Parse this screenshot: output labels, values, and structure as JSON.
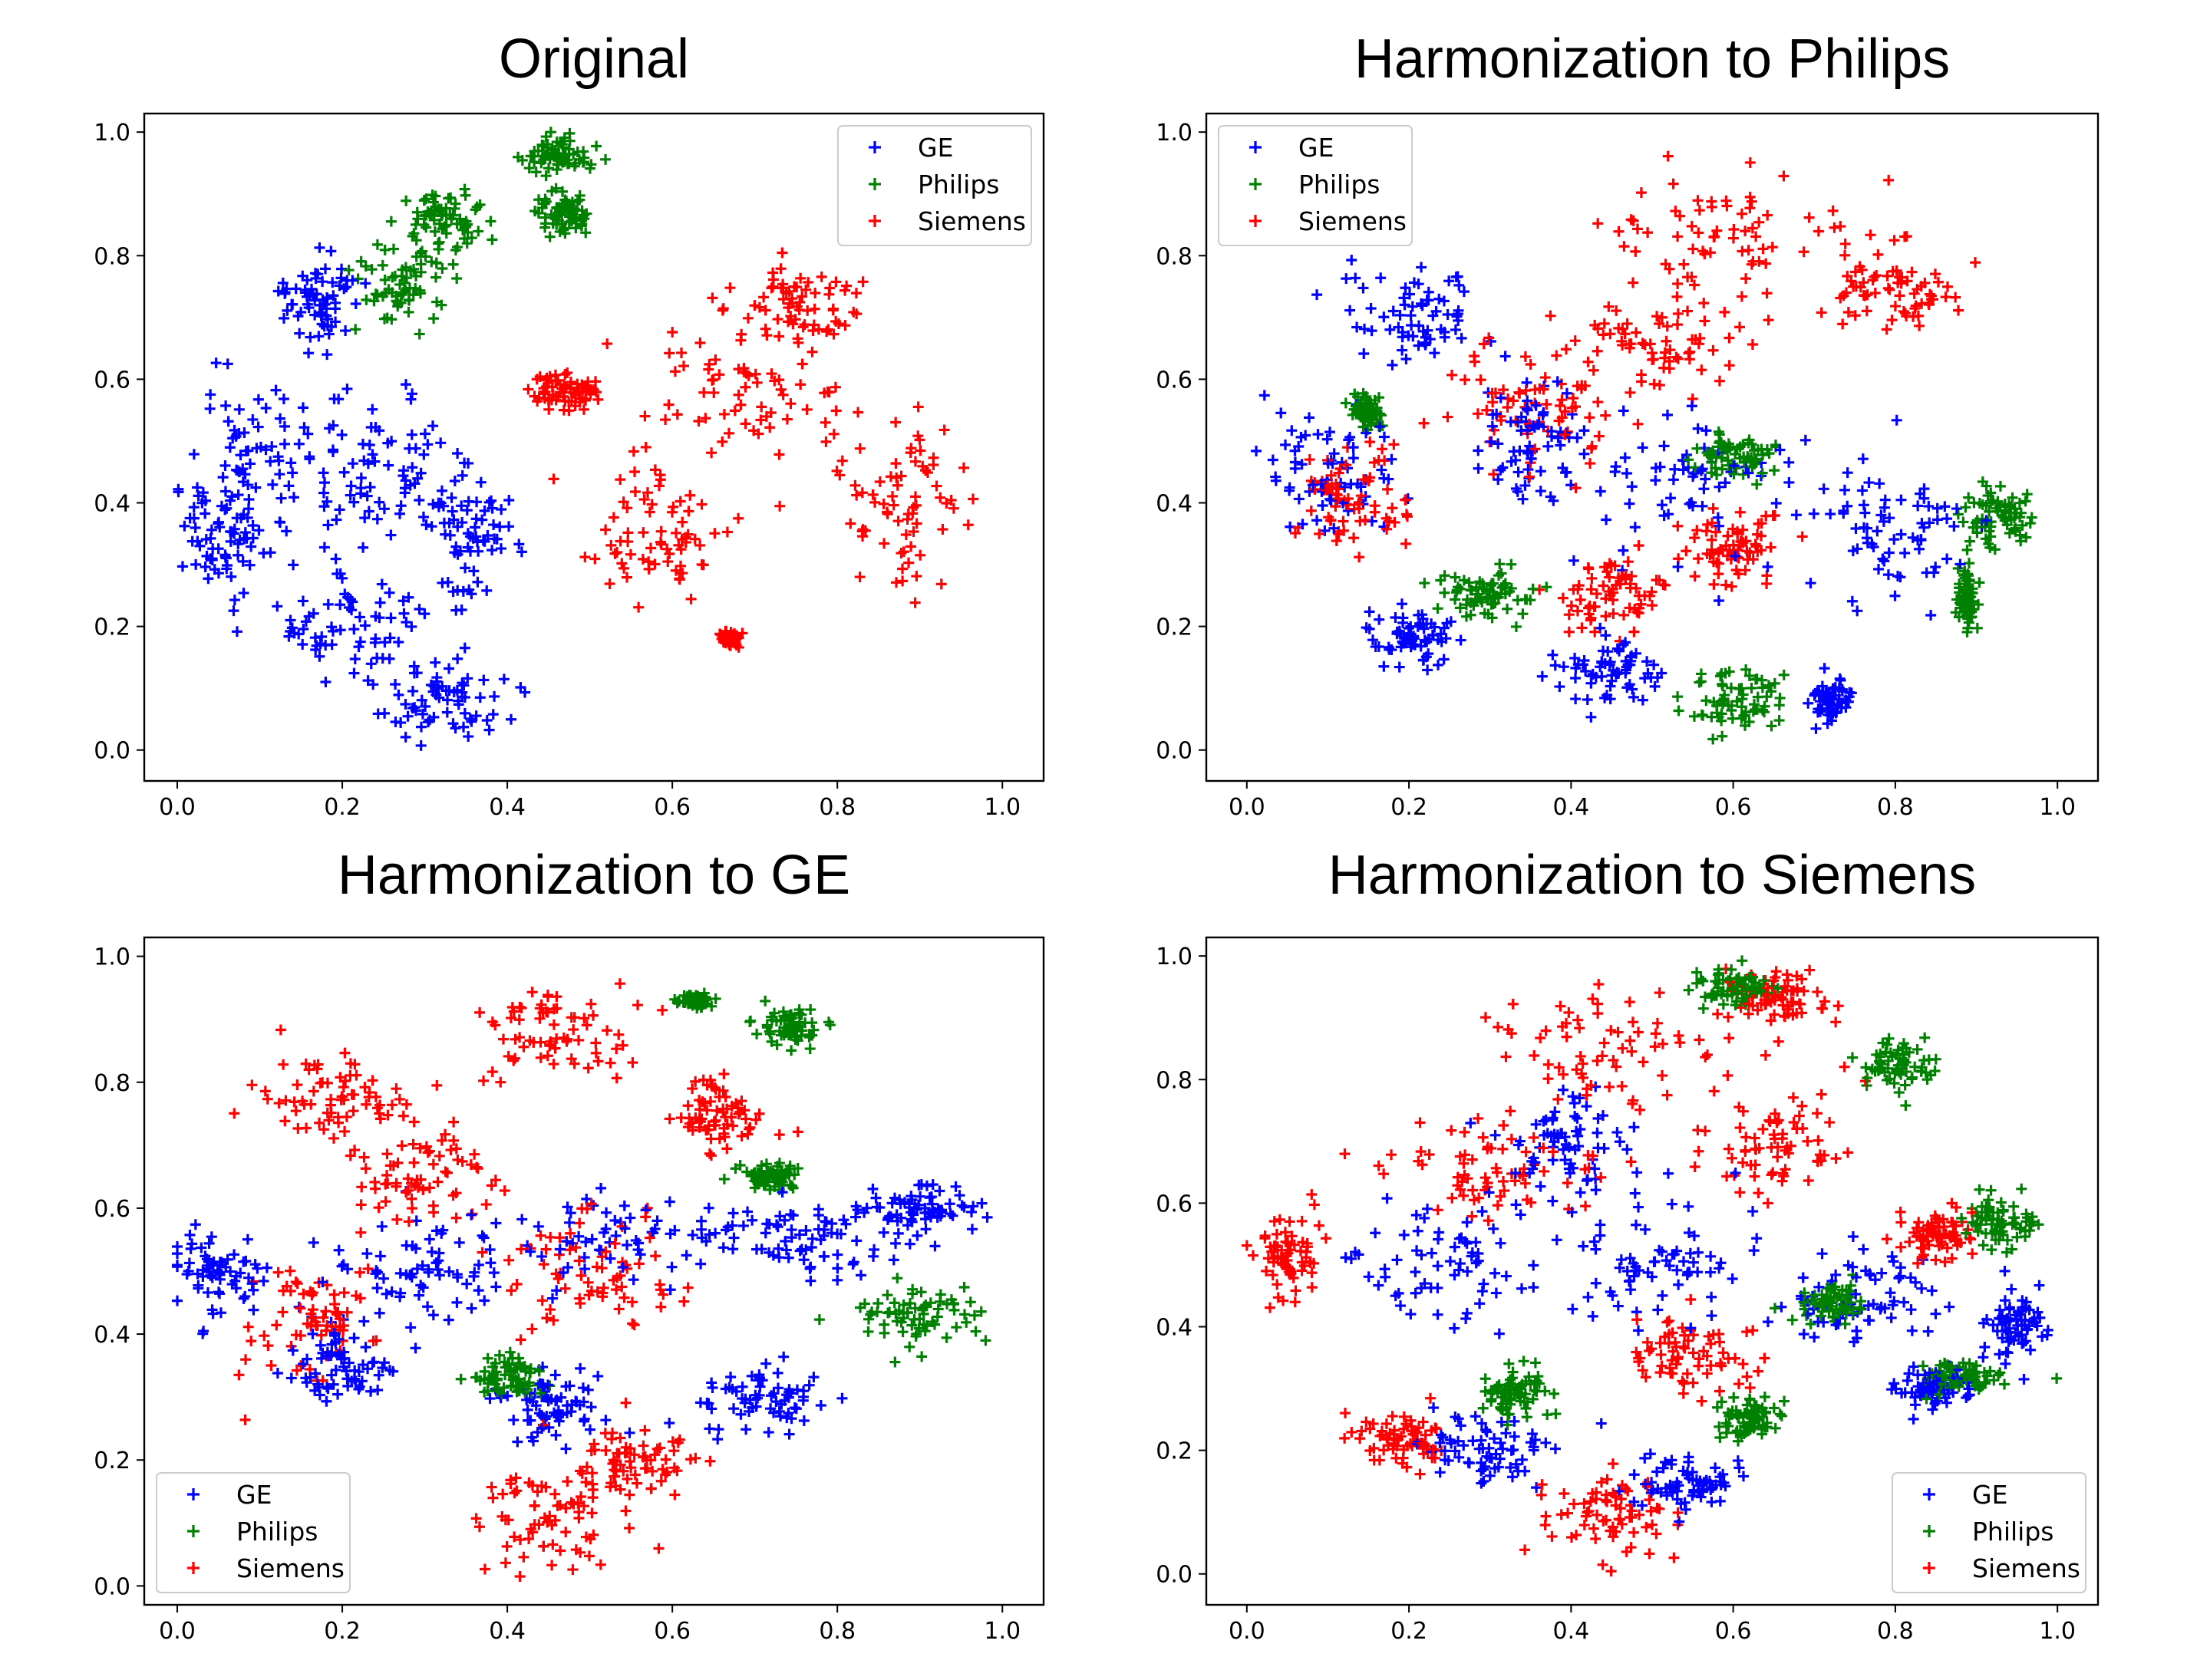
{
  "chart_data": [
    {
      "type": "scatter",
      "title": "Original",
      "xlabel": "",
      "ylabel": "",
      "xlim": [
        -0.04,
        1.05
      ],
      "ylim": [
        -0.05,
        1.03
      ],
      "xticks": [
        "0.0",
        "0.2",
        "0.4",
        "0.6",
        "0.8",
        "1.0"
      ],
      "yticks": [
        "0.0",
        "0.2",
        "0.4",
        "0.6",
        "0.8",
        "1.0"
      ],
      "marker": "+",
      "legend_position": "upper-right",
      "series": [
        {
          "name": "GE",
          "color": "#0000ff",
          "clusters": [
            [
              0.1,
              0.48,
              0.07,
              0.12
            ],
            [
              0.25,
              0.45,
              0.08,
              0.13
            ],
            [
              0.35,
              0.35,
              0.06,
              0.1
            ],
            [
              0.33,
              0.08,
              0.07,
              0.06
            ],
            [
              0.2,
              0.2,
              0.08,
              0.08
            ],
            [
              0.17,
              0.72,
              0.04,
              0.07
            ],
            [
              0.06,
              0.35,
              0.05,
              0.08
            ]
          ]
        },
        {
          "name": "Philips",
          "color": "#008000",
          "clusters": [
            [
              0.27,
              0.76,
              0.05,
              0.07
            ],
            [
              0.33,
              0.86,
              0.04,
              0.04
            ],
            [
              0.46,
              0.96,
              0.04,
              0.03
            ],
            [
              0.47,
              0.87,
              0.03,
              0.03
            ]
          ]
        },
        {
          "name": "Siemens",
          "color": "#ff0000",
          "clusters": [
            [
              0.7,
              0.58,
              0.12,
              0.12
            ],
            [
              0.58,
              0.35,
              0.1,
              0.1
            ],
            [
              0.88,
              0.4,
              0.07,
              0.14
            ],
            [
              0.75,
              0.72,
              0.08,
              0.06
            ],
            [
              0.47,
              0.58,
              0.05,
              0.03
            ],
            [
              0.67,
              0.18,
              0.01,
              0.01
            ]
          ]
        }
      ]
    },
    {
      "type": "scatter",
      "title": "Harmonization to Philips",
      "xlabel": "",
      "ylabel": "",
      "xlim": [
        -0.05,
        1.05
      ],
      "ylim": [
        -0.05,
        1.03
      ],
      "xticks": [
        "0.0",
        "0.2",
        "0.4",
        "0.6",
        "0.8",
        "1.0"
      ],
      "yticks": [
        "0.0",
        "0.2",
        "0.4",
        "0.6",
        "0.8",
        "1.0"
      ],
      "marker": "+",
      "legend_position": "upper-left",
      "series": [
        {
          "name": "GE",
          "color": "#0000ff",
          "clusters": [
            [
              0.2,
              0.7,
              0.08,
              0.07
            ],
            [
              0.1,
              0.45,
              0.07,
              0.09
            ],
            [
              0.55,
              0.42,
              0.15,
              0.12
            ],
            [
              0.8,
              0.35,
              0.08,
              0.1
            ],
            [
              0.2,
              0.18,
              0.05,
              0.04
            ],
            [
              0.45,
              0.13,
              0.06,
              0.05
            ],
            [
              0.35,
              0.5,
              0.06,
              0.08
            ],
            [
              0.72,
              0.08,
              0.02,
              0.03
            ]
          ]
        },
        {
          "name": "Philips",
          "color": "#008000",
          "clusters": [
            [
              0.6,
              0.08,
              0.06,
              0.05
            ],
            [
              0.93,
              0.38,
              0.04,
              0.05
            ],
            [
              0.89,
              0.24,
              0.01,
              0.04
            ],
            [
              0.3,
              0.25,
              0.05,
              0.04
            ],
            [
              0.6,
              0.48,
              0.04,
              0.03
            ],
            [
              0.15,
              0.55,
              0.02,
              0.02
            ]
          ]
        },
        {
          "name": "Siemens",
          "color": "#ff0000",
          "clusters": [
            [
              0.6,
              0.83,
              0.14,
              0.1
            ],
            [
              0.35,
              0.55,
              0.1,
              0.1
            ],
            [
              0.8,
              0.75,
              0.08,
              0.06
            ],
            [
              0.5,
              0.65,
              0.1,
              0.07
            ],
            [
              0.45,
              0.25,
              0.06,
              0.05
            ],
            [
              0.12,
              0.4,
              0.06,
              0.08
            ],
            [
              0.6,
              0.33,
              0.05,
              0.05
            ]
          ]
        }
      ]
    },
    {
      "type": "scatter",
      "title": "Harmonization to GE",
      "xlabel": "",
      "ylabel": "",
      "xlim": [
        -0.04,
        1.05
      ],
      "ylim": [
        -0.03,
        1.03
      ],
      "xticks": [
        "0.0",
        "0.2",
        "0.4",
        "0.6",
        "0.8",
        "1.0"
      ],
      "yticks": [
        "0.0",
        "0.2",
        "0.4",
        "0.6",
        "0.8",
        "1.0"
      ],
      "marker": "+",
      "legend_position": "lower-left",
      "series": [
        {
          "name": "GE",
          "color": "#0000ff",
          "clusters": [
            [
              0.05,
              0.5,
              0.05,
              0.06
            ],
            [
              0.55,
              0.55,
              0.12,
              0.08
            ],
            [
              0.3,
              0.5,
              0.1,
              0.1
            ],
            [
              0.75,
              0.55,
              0.1,
              0.05
            ],
            [
              0.7,
              0.3,
              0.07,
              0.05
            ],
            [
              0.45,
              0.28,
              0.06,
              0.05
            ],
            [
              0.9,
              0.6,
              0.06,
              0.03
            ],
            [
              0.2,
              0.35,
              0.06,
              0.05
            ]
          ]
        },
        {
          "name": "Philips",
          "color": "#008000",
          "clusters": [
            [
              0.9,
              0.43,
              0.06,
              0.05
            ],
            [
              0.74,
              0.89,
              0.03,
              0.03
            ],
            [
              0.63,
              0.93,
              0.02,
              0.01
            ],
            [
              0.4,
              0.33,
              0.04,
              0.03
            ],
            [
              0.72,
              0.65,
              0.03,
              0.02
            ]
          ]
        },
        {
          "name": "Siemens",
          "color": "#ff0000",
          "clusters": [
            [
              0.45,
              0.88,
              0.09,
              0.07
            ],
            [
              0.2,
              0.78,
              0.1,
              0.07
            ],
            [
              0.3,
              0.65,
              0.1,
              0.08
            ],
            [
              0.15,
              0.42,
              0.07,
              0.08
            ],
            [
              0.45,
              0.1,
              0.08,
              0.08
            ],
            [
              0.55,
              0.2,
              0.07,
              0.05
            ],
            [
              0.5,
              0.5,
              0.1,
              0.1
            ],
            [
              0.65,
              0.75,
              0.05,
              0.05
            ]
          ]
        }
      ]
    },
    {
      "type": "scatter",
      "title": "Harmonization to Siemens",
      "xlabel": "",
      "ylabel": "",
      "xlim": [
        -0.05,
        1.05
      ],
      "ylim": [
        -0.05,
        1.03
      ],
      "xticks": [
        "0.0",
        "0.2",
        "0.4",
        "0.6",
        "0.8",
        "1.0"
      ],
      "yticks": [
        "0.0",
        "0.2",
        "0.4",
        "0.6",
        "0.8",
        "1.0"
      ],
      "marker": "+",
      "legend_position": "lower-right",
      "series": [
        {
          "name": "GE",
          "color": "#0000ff",
          "clusters": [
            [
              0.25,
              0.5,
              0.1,
              0.1
            ],
            [
              0.5,
              0.5,
              0.12,
              0.1
            ],
            [
              0.75,
              0.45,
              0.1,
              0.08
            ],
            [
              0.95,
              0.4,
              0.03,
              0.05
            ],
            [
              0.3,
              0.2,
              0.08,
              0.05
            ],
            [
              0.55,
              0.15,
              0.06,
              0.04
            ],
            [
              0.85,
              0.3,
              0.05,
              0.03
            ],
            [
              0.4,
              0.7,
              0.08,
              0.08
            ]
          ]
        },
        {
          "name": "Philips",
          "color": "#008000",
          "clusters": [
            [
              0.93,
              0.57,
              0.04,
              0.04
            ],
            [
              0.6,
              0.95,
              0.04,
              0.03
            ],
            [
              0.8,
              0.82,
              0.04,
              0.04
            ],
            [
              0.33,
              0.3,
              0.04,
              0.04
            ],
            [
              0.62,
              0.25,
              0.04,
              0.03
            ],
            [
              0.88,
              0.32,
              0.05,
              0.02
            ],
            [
              0.72,
              0.44,
              0.04,
              0.03
            ]
          ]
        },
        {
          "name": "Siemens",
          "color": "#ff0000",
          "clusters": [
            [
              0.45,
              0.85,
              0.15,
              0.1
            ],
            [
              0.45,
              0.1,
              0.08,
              0.07
            ],
            [
              0.05,
              0.5,
              0.04,
              0.07
            ],
            [
              0.3,
              0.65,
              0.1,
              0.08
            ],
            [
              0.65,
              0.7,
              0.08,
              0.07
            ],
            [
              0.2,
              0.22,
              0.05,
              0.04
            ],
            [
              0.55,
              0.35,
              0.08,
              0.06
            ],
            [
              0.85,
              0.55,
              0.04,
              0.04
            ],
            [
              0.65,
              0.93,
              0.06,
              0.04
            ]
          ]
        }
      ]
    }
  ]
}
